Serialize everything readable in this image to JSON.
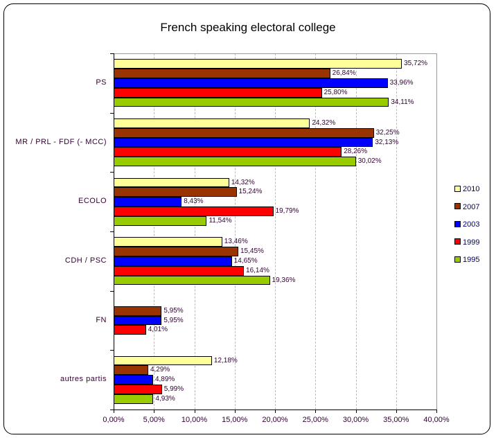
{
  "chart_data": {
    "type": "bar",
    "orientation": "horizontal",
    "title": "French speaking electoral college",
    "xlabel": "",
    "ylabel": "",
    "xlim": [
      0,
      40
    ],
    "x_ticks": [
      "0,00%",
      "5,00%",
      "10,00%",
      "15,00%",
      "20,00%",
      "25,00%",
      "30,00%",
      "35,00%",
      "40,00%"
    ],
    "grid": "vertical dashed",
    "legend_position": "right",
    "categories": [
      "PS",
      "MR / PRL - FDF (- MCC)",
      "ECOLO",
      "CDH / PSC",
      "FN",
      "autres partis"
    ],
    "series": [
      {
        "name": "2010",
        "color": "#FFFF99",
        "values": [
          35.72,
          24.32,
          14.32,
          13.46,
          null,
          12.18
        ],
        "labels": [
          "35,72%",
          "24,32%",
          "14,32%",
          "13,46%",
          "",
          "12,18%"
        ]
      },
      {
        "name": "2007",
        "color": "#993300",
        "values": [
          26.84,
          32.25,
          15.24,
          15.45,
          5.95,
          4.29
        ],
        "labels": [
          "26,84%",
          "32,25%",
          "15,24%",
          "15,45%",
          "5,95%",
          "4,29%"
        ]
      },
      {
        "name": "2003",
        "color": "#0000FF",
        "values": [
          33.96,
          32.13,
          8.43,
          14.65,
          5.95,
          4.89
        ],
        "labels": [
          "33,96%",
          "32,13%",
          "8,43%",
          "14,65%",
          "5,95%",
          "4,89%"
        ]
      },
      {
        "name": "1999",
        "color": "#FF0000",
        "values": [
          25.8,
          28.26,
          19.79,
          16.14,
          4.01,
          5.99
        ],
        "labels": [
          "25,80%",
          "28,26%",
          "19,79%",
          "16,14%",
          "4,01%",
          "5,99%"
        ]
      },
      {
        "name": "1995",
        "color": "#99CC00",
        "values": [
          34.11,
          30.02,
          11.54,
          19.36,
          null,
          4.93
        ],
        "labels": [
          "34,11%",
          "30,02%",
          "11,54%",
          "19,36%",
          "",
          "4,93%"
        ]
      }
    ]
  }
}
